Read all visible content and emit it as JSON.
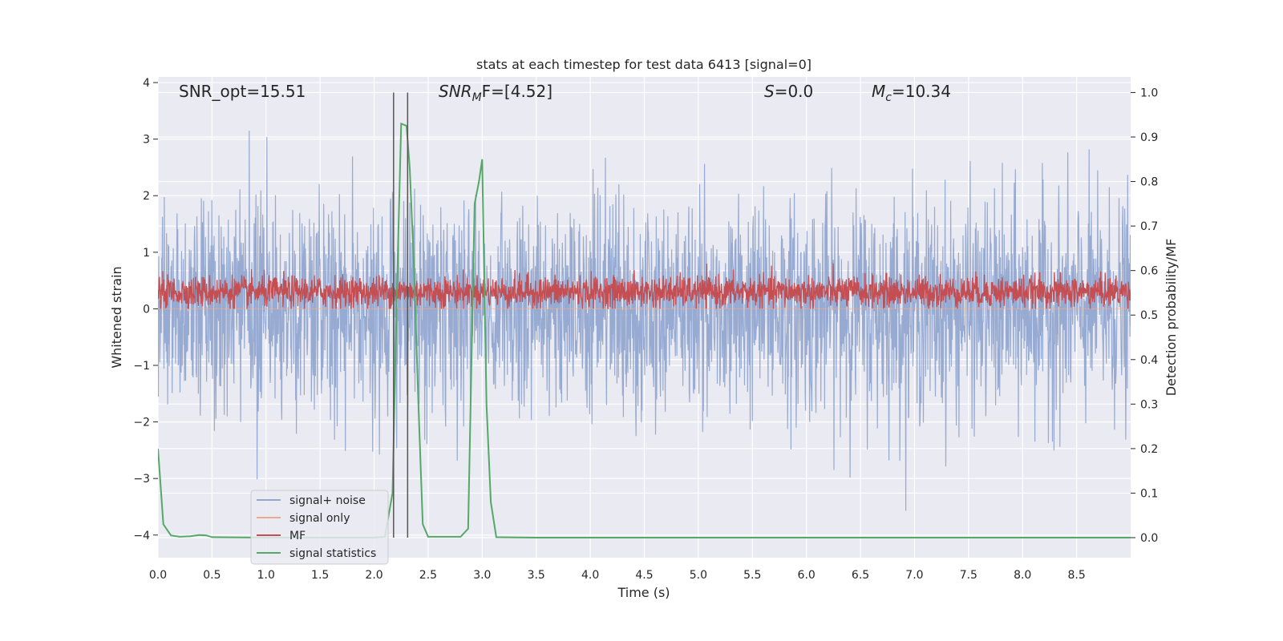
{
  "chart_data": {
    "type": "line",
    "title": "stats at each timestep for test data 6413 [signal=0]",
    "xlabel": "Time (s)",
    "ylabel": "Whitened strain",
    "y2label": "Detection probability/MF",
    "xlim": [
      0.0,
      9.0
    ],
    "ylim": [
      -4.4,
      4.1
    ],
    "y2lim": [
      -0.045,
      1.035
    ],
    "xticks": [
      0.0,
      0.5,
      1.0,
      1.5,
      2.0,
      2.5,
      3.0,
      3.5,
      4.0,
      4.5,
      5.0,
      5.5,
      6.0,
      6.5,
      7.0,
      7.5,
      8.0,
      8.5
    ],
    "xtick_labels": [
      "0.0",
      "0.5",
      "1.0",
      "1.5",
      "2.0",
      "2.5",
      "3.0",
      "3.5",
      "4.0",
      "4.5",
      "5.0",
      "5.5",
      "6.0",
      "6.5",
      "7.0",
      "7.5",
      "8.0",
      "8.5"
    ],
    "yticks": [
      -4,
      -3,
      -2,
      -1,
      0,
      1,
      2,
      3,
      4
    ],
    "ytick_labels": [
      "−4",
      "−3",
      "−2",
      "−1",
      "0",
      "1",
      "2",
      "3",
      "4"
    ],
    "y2ticks": [
      0.0,
      0.1,
      0.2,
      0.3,
      0.4,
      0.5,
      0.6,
      0.7,
      0.8,
      0.9,
      1.0
    ],
    "y2tick_labels": [
      "0.0",
      "0.1",
      "0.2",
      "0.3",
      "0.4",
      "0.5",
      "0.6",
      "0.7",
      "0.8",
      "0.9",
      "1.0"
    ],
    "grid": true,
    "legend_position": "lower-left",
    "annotations": {
      "snr_opt": "SNR_opt=15.51",
      "snr_mf_main": "SNR",
      "snr_mf_sub": "M",
      "snr_mf_tail": "F=[4.52]",
      "s_main": "S",
      "s_tail": "=0.0",
      "mc_main": "M",
      "mc_sub": "c",
      "mc_tail": "=10.34"
    },
    "vlines_x": [
      2.18,
      2.31
    ],
    "series": [
      {
        "name": "signal+ noise",
        "color": "#92a6cf",
        "axis": "left",
        "kind": "noise",
        "envelope": {
          "typical_max": 2.0,
          "typical_min": -1.8,
          "peak_max": 3.6,
          "peak_min": -4.0
        }
      },
      {
        "name": "signal only",
        "color": "#eda98e",
        "axis": "left",
        "kind": "flat",
        "values_y": [
          0.0
        ]
      },
      {
        "name": "MF",
        "color": "#c44e52",
        "axis": "left",
        "kind": "noise",
        "envelope": {
          "center": 0.3,
          "typical_max": 0.6,
          "typical_min": 0.05,
          "peak_max": 1.0,
          "peak_min": 0.0
        }
      },
      {
        "name": "signal statistics",
        "color": "#55a868",
        "axis": "right",
        "x": [
          0.0,
          0.05,
          0.12,
          0.2,
          0.3,
          0.38,
          0.45,
          0.5,
          1.0,
          1.5,
          2.0,
          2.1,
          2.17,
          2.21,
          2.25,
          2.3,
          2.33,
          2.37,
          2.41,
          2.45,
          2.5,
          2.8,
          2.87,
          2.93,
          2.97,
          3.0,
          3.04,
          3.08,
          3.13,
          3.5,
          9.0
        ],
        "values": [
          0.2,
          0.03,
          0.005,
          0.002,
          0.003,
          0.006,
          0.005,
          0.001,
          0.0,
          0.0,
          0.0,
          0.002,
          0.1,
          0.55,
          0.93,
          0.925,
          0.83,
          0.6,
          0.3,
          0.03,
          0.002,
          0.002,
          0.02,
          0.75,
          0.8,
          0.85,
          0.3,
          0.08,
          0.001,
          0.0,
          0.0
        ]
      }
    ]
  }
}
